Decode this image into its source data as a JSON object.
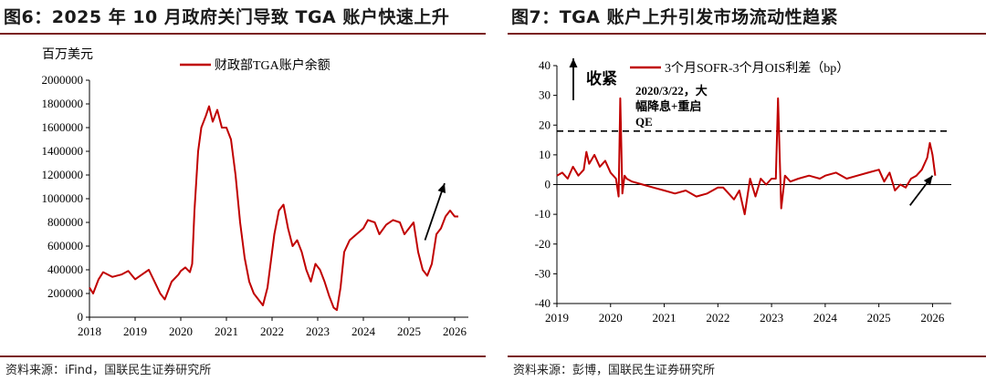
{
  "left": {
    "title": "图6：2025 年 10 月政府关门导致 TGA 账户快速上升",
    "source": "资料来源：iFind，国联民生证券研究所"
  },
  "right": {
    "title": "图7：TGA 账户上升引发市场流动性趋紧",
    "source": "资料来源：彭博，国联民生证券研究所"
  },
  "colors": {
    "series": "#c00000",
    "axis": "#000000",
    "rule": "#7a1f1f"
  },
  "chart_data": [
    {
      "type": "line",
      "title": "",
      "ylabel": "百万美元",
      "xlabel": "",
      "legend": [
        "财政部TGA账户余额"
      ],
      "ylim": [
        0,
        2000000
      ],
      "yticks": [
        0,
        200000,
        400000,
        600000,
        800000,
        1000000,
        1200000,
        1400000,
        1600000,
        1800000,
        2000000
      ],
      "ytick_labels": [
        "0",
        "200000",
        "400000",
        "600000",
        "800000",
        "1000000",
        "1200000",
        "1400000",
        "1600000",
        "1800000",
        "2000000"
      ],
      "xlim": [
        2018,
        2026.3
      ],
      "xticks": [
        2018,
        2019,
        2020,
        2021,
        2022,
        2023,
        2024,
        2025,
        2026
      ],
      "xtick_labels": [
        "2018",
        "2019",
        "2020",
        "2021",
        "2022",
        "2023",
        "2024",
        "2025",
        "2026"
      ],
      "series": [
        {
          "name": "财政部TGA账户余额",
          "x": [
            2018.0,
            2018.08,
            2018.2,
            2018.3,
            2018.5,
            2018.7,
            2018.85,
            2019.0,
            2019.15,
            2019.3,
            2019.45,
            2019.55,
            2019.65,
            2019.8,
            2019.95,
            2020.0,
            2020.1,
            2020.2,
            2020.25,
            2020.3,
            2020.38,
            2020.45,
            2020.55,
            2020.62,
            2020.7,
            2020.8,
            2020.9,
            2021.0,
            2021.1,
            2021.2,
            2021.3,
            2021.4,
            2021.5,
            2021.6,
            2021.7,
            2021.8,
            2021.9,
            2022.0,
            2022.05,
            2022.15,
            2022.25,
            2022.35,
            2022.45,
            2022.55,
            2022.65,
            2022.75,
            2022.85,
            2022.95,
            2023.05,
            2023.15,
            2023.25,
            2023.35,
            2023.42,
            2023.5,
            2023.58,
            2023.7,
            2023.85,
            2024.0,
            2024.1,
            2024.25,
            2024.35,
            2024.5,
            2024.65,
            2024.8,
            2024.9,
            2025.0,
            2025.1,
            2025.2,
            2025.3,
            2025.4,
            2025.5,
            2025.6,
            2025.7,
            2025.8,
            2025.9,
            2026.0,
            2026.08
          ],
          "y": [
            250000,
            200000,
            320000,
            380000,
            340000,
            360000,
            390000,
            320000,
            360000,
            400000,
            280000,
            200000,
            150000,
            300000,
            360000,
            390000,
            420000,
            380000,
            450000,
            900000,
            1400000,
            1600000,
            1700000,
            1780000,
            1650000,
            1750000,
            1600000,
            1600000,
            1500000,
            1200000,
            800000,
            500000,
            300000,
            200000,
            150000,
            100000,
            250000,
            550000,
            700000,
            900000,
            950000,
            750000,
            600000,
            650000,
            550000,
            400000,
            300000,
            450000,
            400000,
            300000,
            180000,
            80000,
            60000,
            250000,
            550000,
            650000,
            700000,
            750000,
            820000,
            800000,
            700000,
            780000,
            820000,
            800000,
            700000,
            750000,
            800000,
            550000,
            400000,
            350000,
            450000,
            700000,
            750000,
            850000,
            900000,
            850000,
            850000
          ]
        }
      ],
      "annotations": [
        {
          "type": "arrow",
          "x0": 2025.35,
          "y0": 650000,
          "x1": 2025.78,
          "y1": 1130000
        }
      ]
    },
    {
      "type": "line",
      "title": "",
      "xlabel": "",
      "ylabel": "",
      "legend": [
        "3个月SOFR-3个月OIS利差（bp）"
      ],
      "ylim": [
        -40,
        40
      ],
      "yticks": [
        -40,
        -30,
        -20,
        -10,
        0,
        10,
        20,
        30,
        40
      ],
      "ytick_labels": [
        "-40",
        "-30",
        "-20",
        "-10",
        "0",
        "10",
        "20",
        "30",
        "40"
      ],
      "xlim": [
        2019,
        2026.35
      ],
      "xticks": [
        2019,
        2020,
        2021,
        2022,
        2023,
        2024,
        2025,
        2026
      ],
      "xtick_labels": [
        "2019",
        "2020",
        "2021",
        "2022",
        "2023",
        "2024",
        "2025",
        "2026"
      ],
      "hlines": [
        {
          "y": 18,
          "style": "dashed"
        }
      ],
      "series": [
        {
          "name": "3个月SOFR-3个月OIS利差（bp）",
          "x": [
            2019.0,
            2019.1,
            2019.2,
            2019.3,
            2019.4,
            2019.5,
            2019.55,
            2019.6,
            2019.7,
            2019.8,
            2019.9,
            2020.0,
            2020.1,
            2020.15,
            2020.18,
            2020.22,
            2020.26,
            2020.3,
            2020.4,
            2020.6,
            2020.8,
            2021.0,
            2021.2,
            2021.4,
            2021.6,
            2021.8,
            2022.0,
            2022.1,
            2022.2,
            2022.3,
            2022.4,
            2022.5,
            2022.6,
            2022.7,
            2022.8,
            2022.9,
            2023.0,
            2023.08,
            2023.12,
            2023.18,
            2023.25,
            2023.35,
            2023.5,
            2023.7,
            2023.9,
            2024.0,
            2024.2,
            2024.4,
            2024.6,
            2024.8,
            2025.0,
            2025.1,
            2025.2,
            2025.3,
            2025.4,
            2025.5,
            2025.6,
            2025.7,
            2025.8,
            2025.9,
            2025.95,
            2026.0,
            2026.05
          ],
          "y": [
            3,
            4,
            2,
            6,
            3,
            5,
            11,
            7,
            10,
            6,
            8,
            4,
            2,
            -4,
            29,
            -3,
            3,
            2,
            1,
            0,
            -1,
            -2,
            -3,
            -2,
            -4,
            -3,
            -1,
            -1,
            -3,
            -5,
            -2,
            -10,
            2,
            -4,
            2,
            0,
            2,
            2,
            29,
            -8,
            3,
            1,
            2,
            3,
            2,
            3,
            4,
            2,
            3,
            4,
            5,
            1,
            4,
            -2,
            0,
            -1,
            2,
            3,
            5,
            9,
            14,
            10,
            3
          ]
        }
      ],
      "annotations": [
        {
          "type": "text",
          "lines": [
            "2020/3/22，大",
            "幅降息+重启",
            "QE"
          ]
        },
        {
          "type": "arrow-label",
          "text": "收紧"
        },
        {
          "type": "arrow",
          "x0": 2025.58,
          "y0": -7,
          "x1": 2026.0,
          "y1": 3
        }
      ]
    }
  ]
}
